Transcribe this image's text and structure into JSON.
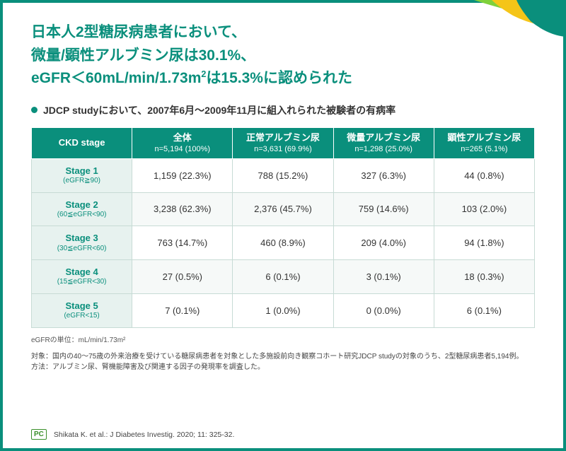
{
  "title_line1": "日本人2型糖尿病患者において、",
  "title_line2": "微量/顕性アルブミン尿は30.1%、",
  "title_line3_a": "eGFR＜60mL/min/1.73m",
  "title_line3_b": "は15.3%に認められた",
  "subtitle": "JDCP studyにおいて、2007年6月～2009年11月に組入れられた被験者の有病率",
  "columns": [
    {
      "label": "CKD stage",
      "sub": ""
    },
    {
      "label": "全体",
      "sub": "n=5,194 (100%)"
    },
    {
      "label": "正常アルブミン尿",
      "sub": "n=3,631 (69.9%)"
    },
    {
      "label": "微量アルブミン尿",
      "sub": "n=1,298 (25.0%)"
    },
    {
      "label": "顕性アルブミン尿",
      "sub": "n=265 (5.1%)"
    }
  ],
  "rows": [
    {
      "stage": "Stage 1",
      "range": "(eGFR≧90)",
      "c": [
        "1,159 (22.3%)",
        "788 (15.2%)",
        "327 (6.3%)",
        "44 (0.8%)"
      ]
    },
    {
      "stage": "Stage 2",
      "range": "(60≦eGFR<90)",
      "c": [
        "3,238 (62.3%)",
        "2,376 (45.7%)",
        "759 (14.6%)",
        "103 (2.0%)"
      ]
    },
    {
      "stage": "Stage 3",
      "range": "(30≦eGFR<60)",
      "c": [
        "763 (14.7%)",
        "460 (8.9%)",
        "209 (4.0%)",
        "94 (1.8%)"
      ]
    },
    {
      "stage": "Stage 4",
      "range": "(15≦eGFR<30)",
      "c": [
        "27 (0.5%)",
        "6 (0.1%)",
        "3 (0.1%)",
        "18 (0.3%)"
      ]
    },
    {
      "stage": "Stage 5",
      "range": "(eGFR<15)",
      "c": [
        "7 (0.1%)",
        "1 (0.0%)",
        "0 (0.0%)",
        "6 (0.1%)"
      ]
    }
  ],
  "unit_note": "eGFRの単位：mL/min/1.73m²",
  "footnote_target": "対象：国内の40～75歳の外来治療を受けている糖尿病患者を対象とした多施設前向き観察コホート研究JDCP studyの対象のうち、2型糖尿病患者5,194例。",
  "footnote_method": "方法：アルブミン尿、腎機能障害及び関連する因子の発現率を調査した。",
  "pc_badge": "PC",
  "citation": "Shikata K. et al.: J Diabetes Investig. 2020; 11: 325-32.",
  "colors": {
    "teal": "#0a8f7c",
    "header_bg": "#0a8f7c",
    "stage_bg": "#e7f2ef",
    "border": "#c7dbd5"
  }
}
